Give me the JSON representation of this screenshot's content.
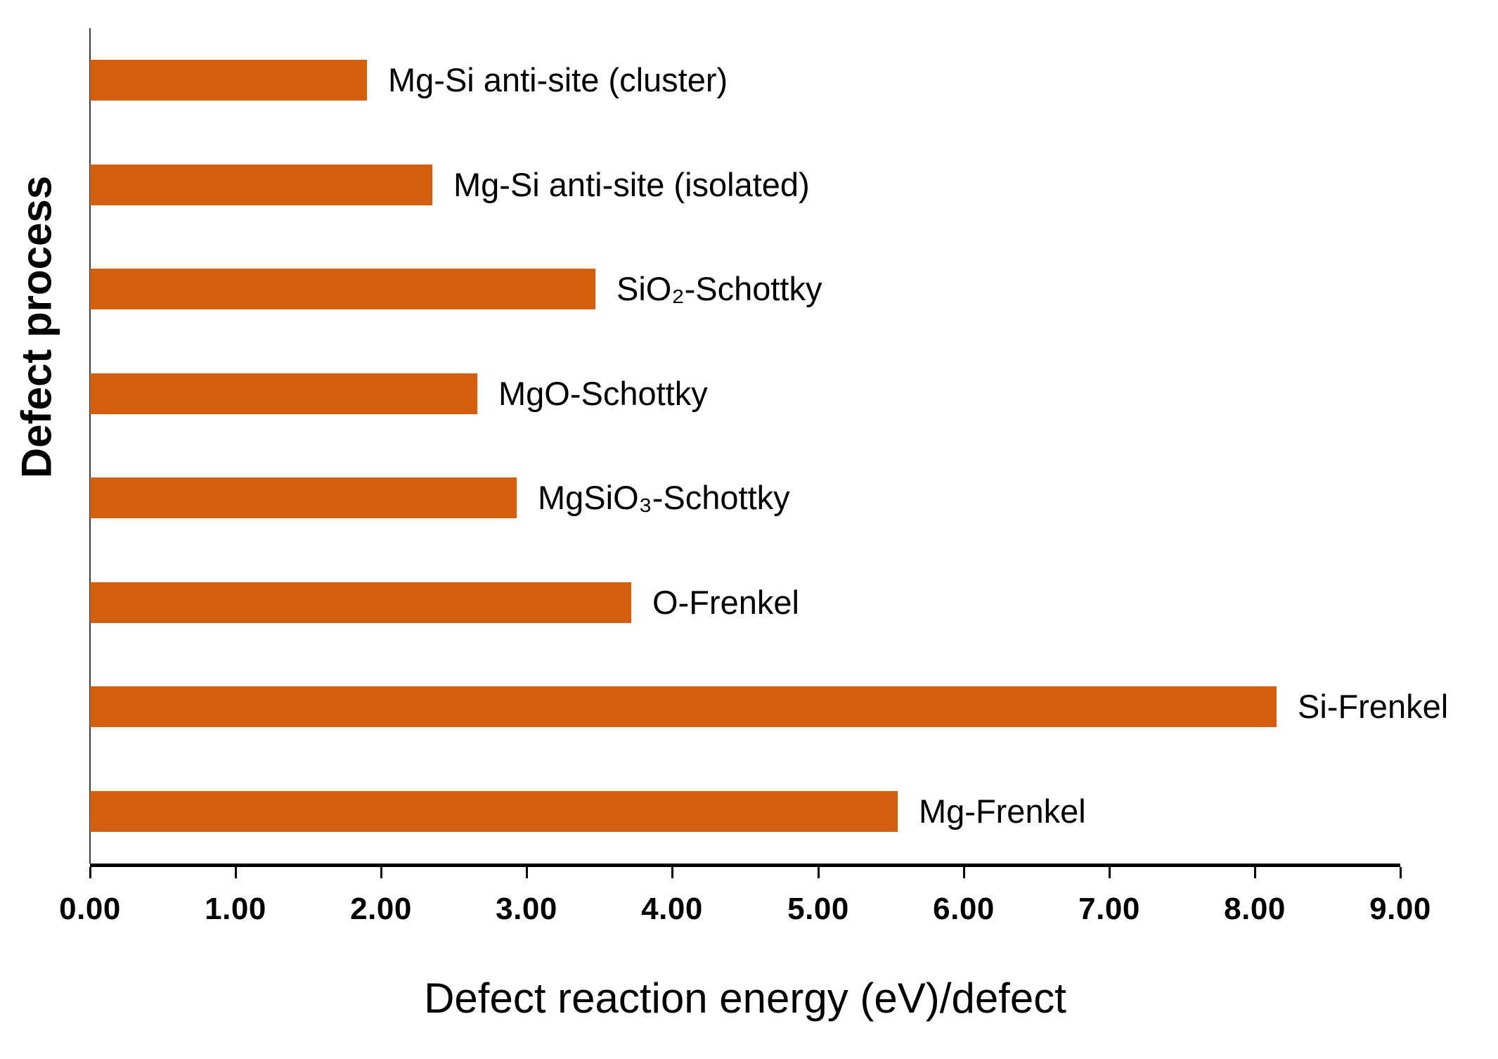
{
  "chart_data": {
    "type": "bar",
    "orientation": "horizontal",
    "title": "",
    "xlabel": "Defect reaction energy (eV)/defect",
    "ylabel": "Defect process",
    "xlim": [
      0,
      9
    ],
    "x_tick_labels": [
      "0.00",
      "1.00",
      "2.00",
      "3.00",
      "4.00",
      "5.00",
      "6.00",
      "7.00",
      "8.00",
      "9.00"
    ],
    "grid": "off",
    "legend": "none",
    "bar_color": "#d35e0e",
    "items_top_to_bottom": [
      {
        "label": "Mg-Si anti-site (cluster)",
        "value": 1.9
      },
      {
        "label": "Mg-Si anti-site (isolated)",
        "value": 2.35
      },
      {
        "label": "SiO₂-Schottky",
        "value": 3.47
      },
      {
        "label": "MgO-Schottky",
        "value": 2.66
      },
      {
        "label": "MgSiO₃-Schottky",
        "value": 2.93
      },
      {
        "label": "O-Frenkel",
        "value": 3.72
      },
      {
        "label": "Si-Frenkel",
        "value": 8.15
      },
      {
        "label": "Mg-Frenkel",
        "value": 5.55
      }
    ]
  }
}
